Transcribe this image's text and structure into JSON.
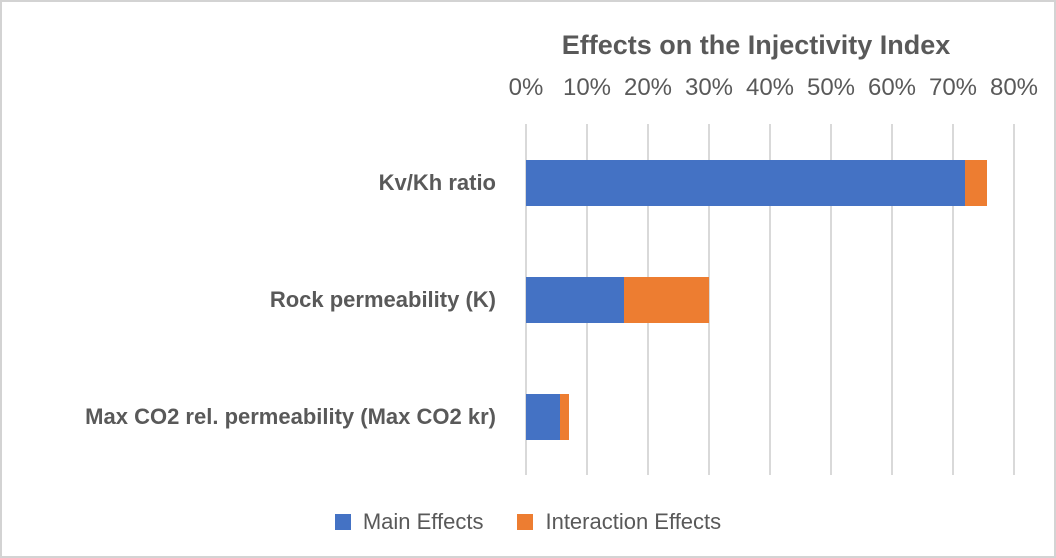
{
  "chart_data": {
    "type": "bar",
    "orientation": "horizontal",
    "stacked": true,
    "title": "Effects on the Injectivity Index",
    "categories": [
      "Kv/Kh ratio",
      "Rock permeability (K)",
      "Max CO2 rel. permeability (Max CO2 kr)"
    ],
    "series": [
      {
        "name": "Main Effects",
        "color": "#4472C4",
        "values": [
          72,
          16,
          5.5
        ]
      },
      {
        "name": "Interaction Effects",
        "color": "#ED7D31",
        "values": [
          3.5,
          14,
          1.5
        ]
      }
    ],
    "x_axis": {
      "min": 0,
      "max": 80,
      "tick_step": 10,
      "tick_labels": [
        "0%",
        "10%",
        "20%",
        "30%",
        "40%",
        "50%",
        "60%",
        "70%",
        "80%"
      ],
      "position": "top"
    },
    "grid": true,
    "legend_position": "bottom",
    "colors": {
      "text": "#595959",
      "gridline": "#d9d9d9",
      "frame_border": "#d3d3d3",
      "background": "#ffffff"
    }
  }
}
